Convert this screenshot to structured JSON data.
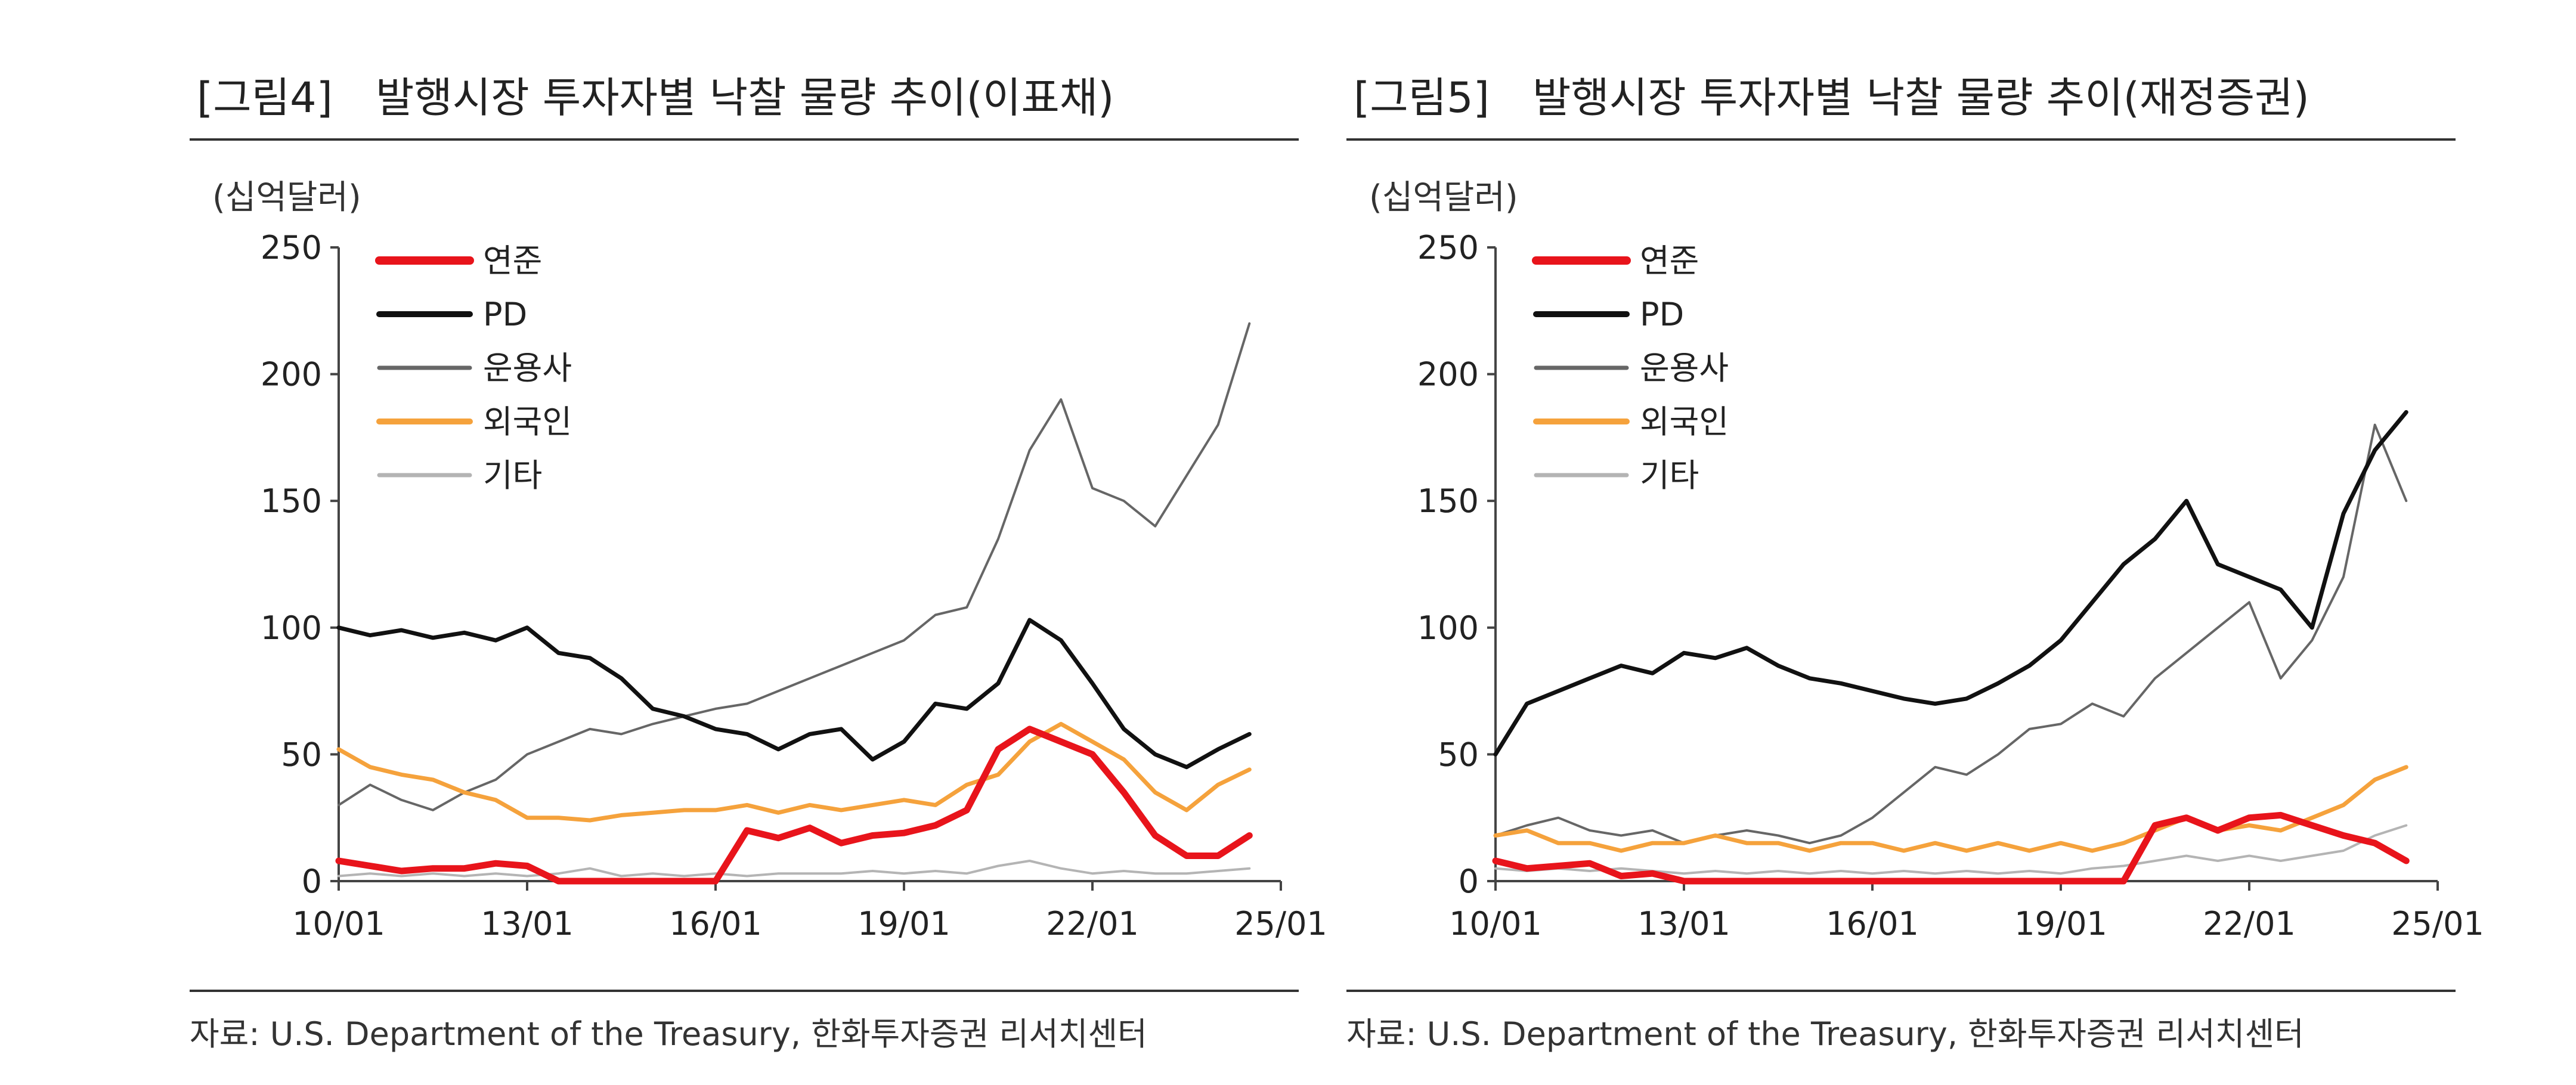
{
  "colors": {
    "fed": "#e8141b",
    "pd": "#111111",
    "asset_manager": "#666666",
    "foreign": "#f5a23c",
    "other": "#b4b4b4"
  },
  "chart_data": [
    {
      "id": "fig4",
      "type": "line",
      "figure_number": "[그림4]",
      "title": "발행시장 투자자별 낙찰 물량 추이(이표채)",
      "unit": "(십억달러)",
      "ylim": [
        0,
        250
      ],
      "y_ticks": [
        "0",
        "50",
        "100",
        "150",
        "200",
        "250"
      ],
      "xlim": [
        "2010-01",
        "2025-01"
      ],
      "x_ticks": [
        "10/01",
        "13/01",
        "16/01",
        "19/01",
        "22/01",
        "25/01"
      ],
      "grid": false,
      "legend_position": "top-left",
      "source": "자료: U.S. Department of the Treasury, 한화투자증권 리서치센터",
      "series": [
        {
          "name": "연준",
          "key": "fed",
          "x": [
            "2010-01",
            "2010-07",
            "2011-01",
            "2011-07",
            "2012-01",
            "2012-07",
            "2013-01",
            "2013-07",
            "2014-01",
            "2014-07",
            "2015-01",
            "2015-07",
            "2016-01",
            "2016-07",
            "2017-01",
            "2017-07",
            "2018-01",
            "2018-07",
            "2019-01",
            "2019-07",
            "2020-01",
            "2020-07",
            "2021-01",
            "2021-07",
            "2022-01",
            "2022-07",
            "2023-01",
            "2023-07",
            "2024-01",
            "2024-07"
          ],
          "values": [
            8,
            6,
            4,
            5,
            5,
            7,
            6,
            0,
            0,
            0,
            0,
            0,
            0,
            20,
            17,
            21,
            15,
            18,
            19,
            22,
            28,
            52,
            60,
            55,
            50,
            35,
            18,
            10,
            10,
            18
          ]
        },
        {
          "name": "PD",
          "key": "pd",
          "x": [
            "2010-01",
            "2010-07",
            "2011-01",
            "2011-07",
            "2012-01",
            "2012-07",
            "2013-01",
            "2013-07",
            "2014-01",
            "2014-07",
            "2015-01",
            "2015-07",
            "2016-01",
            "2016-07",
            "2017-01",
            "2017-07",
            "2018-01",
            "2018-07",
            "2019-01",
            "2019-07",
            "2020-01",
            "2020-07",
            "2021-01",
            "2021-07",
            "2022-01",
            "2022-07",
            "2023-01",
            "2023-07",
            "2024-01",
            "2024-07"
          ],
          "values": [
            100,
            97,
            99,
            96,
            98,
            95,
            100,
            90,
            88,
            80,
            68,
            65,
            60,
            58,
            52,
            58,
            60,
            48,
            55,
            70,
            68,
            78,
            103,
            95,
            78,
            60,
            50,
            45,
            52,
            58
          ]
        },
        {
          "name": "운용사",
          "key": "asset_manager",
          "x": [
            "2010-01",
            "2010-07",
            "2011-01",
            "2011-07",
            "2012-01",
            "2012-07",
            "2013-01",
            "2013-07",
            "2014-01",
            "2014-07",
            "2015-01",
            "2015-07",
            "2016-01",
            "2016-07",
            "2017-01",
            "2017-07",
            "2018-01",
            "2018-07",
            "2019-01",
            "2019-07",
            "2020-01",
            "2020-07",
            "2021-01",
            "2021-07",
            "2022-01",
            "2022-07",
            "2023-01",
            "2023-07",
            "2024-01",
            "2024-07"
          ],
          "values": [
            30,
            38,
            32,
            28,
            35,
            40,
            50,
            55,
            60,
            58,
            62,
            65,
            68,
            70,
            75,
            80,
            85,
            90,
            95,
            105,
            108,
            135,
            170,
            190,
            155,
            150,
            140,
            160,
            180,
            220
          ]
        },
        {
          "name": "외국인",
          "key": "foreign",
          "x": [
            "2010-01",
            "2010-07",
            "2011-01",
            "2011-07",
            "2012-01",
            "2012-07",
            "2013-01",
            "2013-07",
            "2014-01",
            "2014-07",
            "2015-01",
            "2015-07",
            "2016-01",
            "2016-07",
            "2017-01",
            "2017-07",
            "2018-01",
            "2018-07",
            "2019-01",
            "2019-07",
            "2020-01",
            "2020-07",
            "2021-01",
            "2021-07",
            "2022-01",
            "2022-07",
            "2023-01",
            "2023-07",
            "2024-01",
            "2024-07"
          ],
          "values": [
            52,
            45,
            42,
            40,
            35,
            32,
            25,
            25,
            24,
            26,
            27,
            28,
            28,
            30,
            27,
            30,
            28,
            30,
            32,
            30,
            38,
            42,
            55,
            62,
            55,
            48,
            35,
            28,
            38,
            44
          ]
        },
        {
          "name": "기타",
          "key": "other",
          "x": [
            "2010-01",
            "2010-07",
            "2011-01",
            "2011-07",
            "2012-01",
            "2012-07",
            "2013-01",
            "2013-07",
            "2014-01",
            "2014-07",
            "2015-01",
            "2015-07",
            "2016-01",
            "2016-07",
            "2017-01",
            "2017-07",
            "2018-01",
            "2018-07",
            "2019-01",
            "2019-07",
            "2020-01",
            "2020-07",
            "2021-01",
            "2021-07",
            "2022-01",
            "2022-07",
            "2023-01",
            "2023-07",
            "2024-01",
            "2024-07"
          ],
          "values": [
            2,
            3,
            2,
            3,
            2,
            3,
            2,
            3,
            5,
            2,
            3,
            2,
            3,
            2,
            3,
            3,
            3,
            4,
            3,
            4,
            3,
            6,
            8,
            5,
            3,
            4,
            3,
            3,
            4,
            5
          ]
        }
      ]
    },
    {
      "id": "fig5",
      "type": "line",
      "figure_number": "[그림5]",
      "title": "발행시장 투자자별 낙찰 물량 추이(재정증권)",
      "unit": "(십억달러)",
      "ylim": [
        0,
        250
      ],
      "y_ticks": [
        "0",
        "50",
        "100",
        "150",
        "200",
        "250"
      ],
      "xlim": [
        "2010-01",
        "2025-01"
      ],
      "x_ticks": [
        "10/01",
        "13/01",
        "16/01",
        "19/01",
        "22/01",
        "25/01"
      ],
      "grid": false,
      "legend_position": "top-left",
      "source": "자료: U.S. Department of the Treasury, 한화투자증권 리서치센터",
      "series": [
        {
          "name": "연준",
          "key": "fed",
          "x": [
            "2010-01",
            "2010-07",
            "2011-01",
            "2011-07",
            "2012-01",
            "2012-07",
            "2013-01",
            "2013-07",
            "2014-01",
            "2014-07",
            "2015-01",
            "2015-07",
            "2016-01",
            "2016-07",
            "2017-01",
            "2017-07",
            "2018-01",
            "2018-07",
            "2019-01",
            "2019-07",
            "2020-01",
            "2020-07",
            "2021-01",
            "2021-07",
            "2022-01",
            "2022-07",
            "2023-01",
            "2023-07",
            "2024-01",
            "2024-07"
          ],
          "values": [
            8,
            5,
            6,
            7,
            2,
            3,
            0,
            0,
            0,
            0,
            0,
            0,
            0,
            0,
            0,
            0,
            0,
            0,
            0,
            0,
            0,
            22,
            25,
            20,
            25,
            26,
            22,
            18,
            15,
            8
          ]
        },
        {
          "name": "PD",
          "key": "pd",
          "x": [
            "2010-01",
            "2010-07",
            "2011-01",
            "2011-07",
            "2012-01",
            "2012-07",
            "2013-01",
            "2013-07",
            "2014-01",
            "2014-07",
            "2015-01",
            "2015-07",
            "2016-01",
            "2016-07",
            "2017-01",
            "2017-07",
            "2018-01",
            "2018-07",
            "2019-01",
            "2019-07",
            "2020-01",
            "2020-07",
            "2021-01",
            "2021-07",
            "2022-01",
            "2022-07",
            "2023-01",
            "2023-07",
            "2024-01",
            "2024-07"
          ],
          "values": [
            50,
            70,
            75,
            80,
            85,
            82,
            90,
            88,
            92,
            85,
            80,
            78,
            75,
            72,
            70,
            72,
            78,
            85,
            95,
            110,
            125,
            135,
            150,
            125,
            120,
            115,
            100,
            145,
            170,
            185
          ]
        },
        {
          "name": "운용사",
          "key": "asset_manager",
          "x": [
            "2010-01",
            "2010-07",
            "2011-01",
            "2011-07",
            "2012-01",
            "2012-07",
            "2013-01",
            "2013-07",
            "2014-01",
            "2014-07",
            "2015-01",
            "2015-07",
            "2016-01",
            "2016-07",
            "2017-01",
            "2017-07",
            "2018-01",
            "2018-07",
            "2019-01",
            "2019-07",
            "2020-01",
            "2020-07",
            "2021-01",
            "2021-07",
            "2022-01",
            "2022-07",
            "2023-01",
            "2023-07",
            "2024-01",
            "2024-07"
          ],
          "values": [
            18,
            22,
            25,
            20,
            18,
            20,
            15,
            18,
            20,
            18,
            15,
            18,
            25,
            35,
            45,
            42,
            50,
            60,
            62,
            70,
            65,
            80,
            90,
            100,
            110,
            80,
            95,
            120,
            180,
            150
          ]
        },
        {
          "name": "외국인",
          "key": "foreign",
          "x": [
            "2010-01",
            "2010-07",
            "2011-01",
            "2011-07",
            "2012-01",
            "2012-07",
            "2013-01",
            "2013-07",
            "2014-01",
            "2014-07",
            "2015-01",
            "2015-07",
            "2016-01",
            "2016-07",
            "2017-01",
            "2017-07",
            "2018-01",
            "2018-07",
            "2019-01",
            "2019-07",
            "2020-01",
            "2020-07",
            "2021-01",
            "2021-07",
            "2022-01",
            "2022-07",
            "2023-01",
            "2023-07",
            "2024-01",
            "2024-07"
          ],
          "values": [
            18,
            20,
            15,
            15,
            12,
            15,
            15,
            18,
            15,
            15,
            12,
            15,
            15,
            12,
            15,
            12,
            15,
            12,
            15,
            12,
            15,
            20,
            25,
            20,
            22,
            20,
            25,
            30,
            40,
            45
          ]
        },
        {
          "name": "기타",
          "key": "other",
          "x": [
            "2010-01",
            "2010-07",
            "2011-01",
            "2011-07",
            "2012-01",
            "2012-07",
            "2013-01",
            "2013-07",
            "2014-01",
            "2014-07",
            "2015-01",
            "2015-07",
            "2016-01",
            "2016-07",
            "2017-01",
            "2017-07",
            "2018-01",
            "2018-07",
            "2019-01",
            "2019-07",
            "2020-01",
            "2020-07",
            "2021-01",
            "2021-07",
            "2022-01",
            "2022-07",
            "2023-01",
            "2023-07",
            "2024-01",
            "2024-07"
          ],
          "values": [
            5,
            4,
            5,
            4,
            5,
            4,
            3,
            4,
            3,
            4,
            3,
            4,
            3,
            4,
            3,
            4,
            3,
            4,
            3,
            5,
            6,
            8,
            10,
            8,
            10,
            8,
            10,
            12,
            18,
            22
          ]
        }
      ]
    }
  ]
}
